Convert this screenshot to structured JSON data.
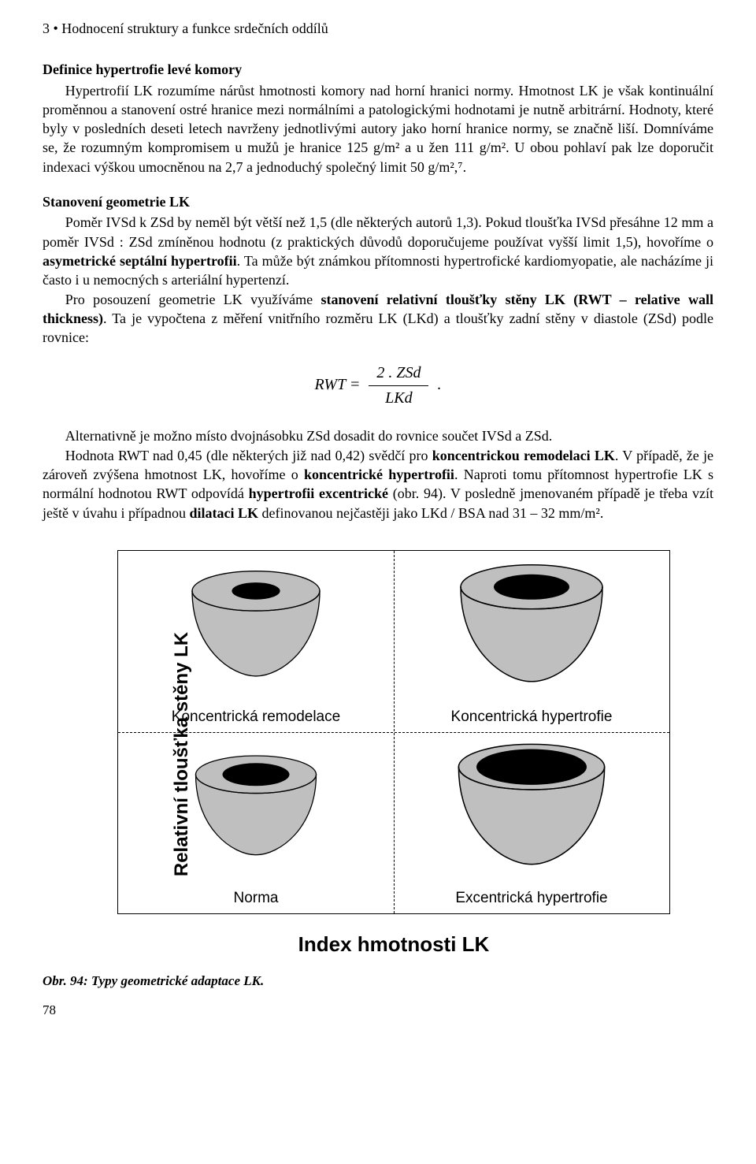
{
  "chapter_header": "3 • Hodnocení struktury a funkce srdečních oddílů",
  "section1": {
    "title": "Definice hypertrofie levé komory",
    "para": "Hypertrofií LK rozumíme nárůst hmotnosti komory nad horní hranici normy. Hmotnost LK je však kontinuální proměnnou a stanovení ostré hranice mezi normálními a patologickými hodnotami je nutně arbitrární. Hodnoty, které byly v posledních deseti letech navrženy jednotlivými autory jako horní hranice normy, se značně liší. Domníváme se, že rozumným kompromisem u mužů je hranice 125 g/m² a u žen 111 g/m². U obou pohlaví pak lze doporučit indexaci výškou umocněnou na 2,7 a jednoduchý společný limit 50 g/m²,⁷."
  },
  "section2": {
    "title": "Stanovení geometrie LK",
    "p1a": "Poměr IVSd k ZSd by neměl být větší než 1,5 (dle některých autorů 1,3). Pokud tloušťka IVSd přesáhne 12 mm a poměr IVSd : ZSd zmíněnou hodnotu (z praktických důvodů doporučujeme používat vyšší limit 1,5), hovoříme o ",
    "p1b_bold": "asymetrické septální hypertrofii",
    "p1c": ". Ta může být známkou přítomnosti hypertrofické kardiomyopatie, ale nacházíme ji často i u nemocných s arteriální hypertenzí.",
    "p2a": "Pro posouzení geometrie LK využíváme ",
    "p2b_bold": "stanovení relativní tloušťky stěny LK (RWT – relative wall thickness)",
    "p2c": ". Ta je vypočtena z měření vnitřního rozměru LK (LKd) a tloušťky zadní stěny v diastole (ZSd) podle rovnice:"
  },
  "formula": {
    "lhs": "RWT =",
    "num": "2 . ZSd",
    "den": "LKd",
    "trail": "."
  },
  "post": {
    "p1": "Alternativně je možno místo dvojnásobku ZSd dosadit do rovnice součet IVSd a ZSd.",
    "p2a": "Hodnota RWT nad 0,45 (dle některých již nad 0,42) svědčí pro ",
    "p2b_bold": "koncentrickou remodelaci LK",
    "p2c": ". V případě, že je zároveň zvýšena hmotnost LK, hovoříme o ",
    "p2d_bold": "koncentrické hypertrofii",
    "p2e": ". Naproti tomu přítomnost hypertrofie LK s normální hodnotou RWT odpovídá ",
    "p2f_bold": "hypertrofii excentrické",
    "p2g": " (obr. 94). V posledně jmenovaném případě je třeba vzít ještě v úvahu i případnou ",
    "p2h_bold": "dilataci LK",
    "p2i": " definovanou nejčastěji jako LKd / BSA nad 31 – 32 mm/m²."
  },
  "diagram": {
    "y_label": "Relativní tloušťka stěny LK",
    "x_label": "Index hmotnosti LK",
    "quadrants": {
      "top_left": {
        "label": "Koncentrická remodelace",
        "wall_thick": true,
        "cavity_wide": false
      },
      "top_right": {
        "label": "Koncentrická hypertrofie",
        "wall_thick": true,
        "cavity_wide": true
      },
      "bottom_left": {
        "label": "Norma",
        "wall_thick": false,
        "cavity_wide": false
      },
      "bottom_right": {
        "label": "Excentrická hypertrofie",
        "wall_thick": false,
        "cavity_wide": true
      }
    },
    "colors": {
      "wall_fill": "#bfbfbf",
      "cavity_fill": "#000000",
      "stroke": "#000000",
      "background": "#ffffff"
    }
  },
  "figure_caption": "Obr. 94:  Typy geometrické adaptace LK.",
  "page_number": "78"
}
